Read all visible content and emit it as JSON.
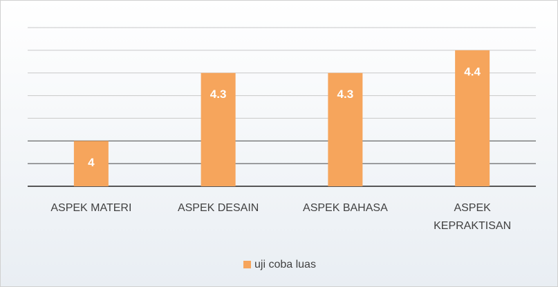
{
  "chart_data": {
    "type": "bar",
    "categories": [
      "ASPEK MATERI",
      "ASPEK DESAIN",
      "ASPEK BAHASA",
      "ASPEK KEPRAKTISAN"
    ],
    "series": [
      {
        "name": "uji coba luas",
        "color": "#f6a55c",
        "values": [
          4,
          4.3,
          4.3,
          4.4
        ]
      }
    ],
    "ylim": [
      3.8,
      4.5
    ],
    "yticks": [
      3.8,
      3.9,
      4,
      4.1,
      4.2,
      4.3,
      4.4,
      4.5
    ],
    "grid": true,
    "legend": "bottom"
  }
}
